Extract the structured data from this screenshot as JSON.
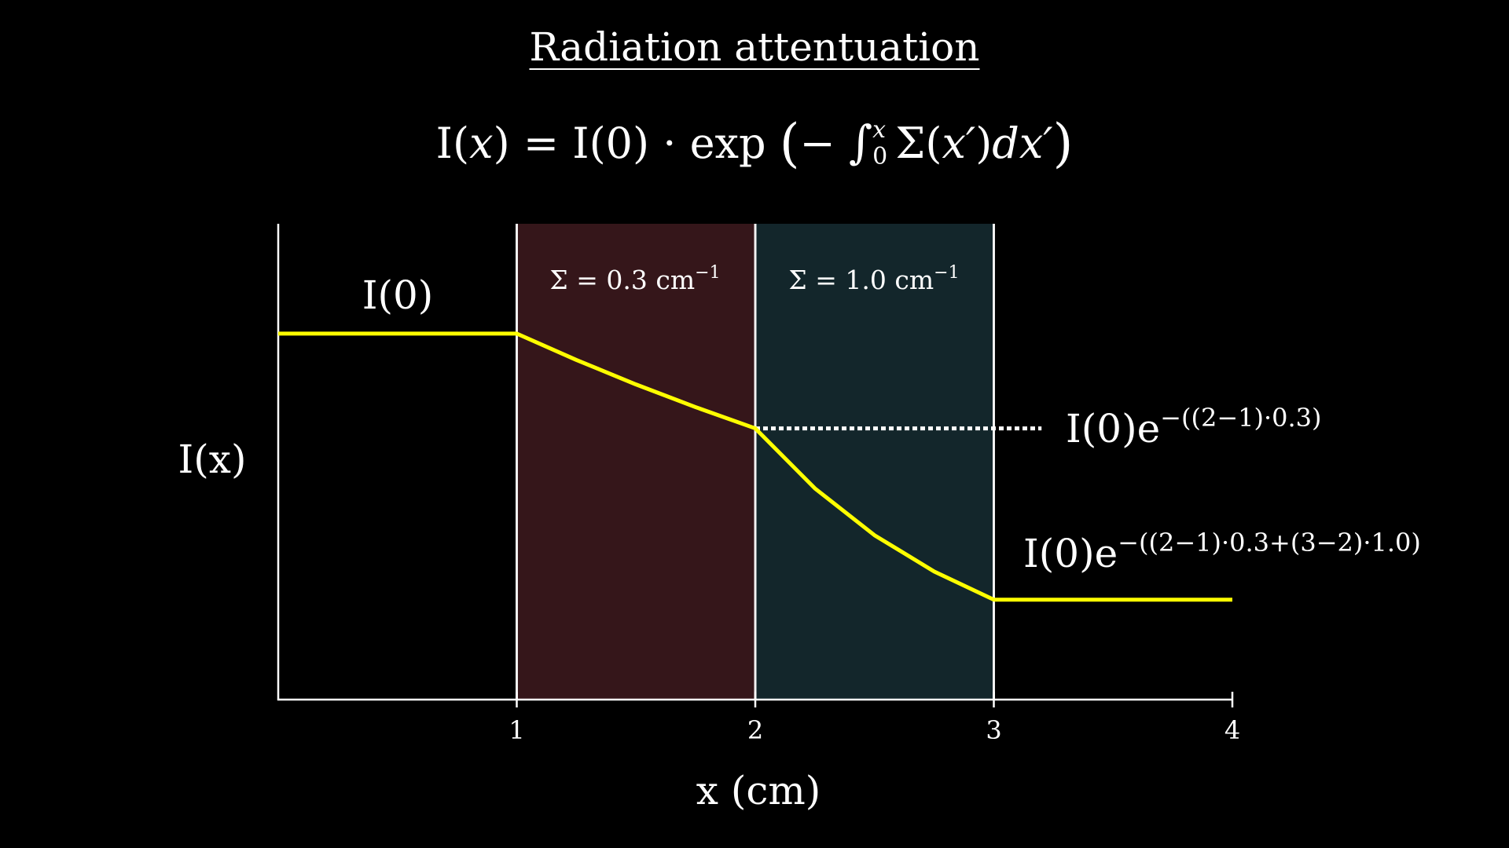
{
  "title": "Radiation attentuation",
  "formula": {
    "lhs_func": "I",
    "lhs_open": "(",
    "lhs_var": "x",
    "lhs_close": ")",
    "equals": "=",
    "i0": "I(0)",
    "dot": "·",
    "exp": "exp",
    "open_paren": "(",
    "minus": "−",
    "integral": "∫",
    "upper_limit": "x",
    "lower_limit": "0",
    "sigma": "Σ(",
    "sigma_arg": "x′",
    "sigma_close": ")",
    "d": "d",
    "d_var": "x′",
    "close_paren": ")"
  },
  "colors": {
    "background": "#000000",
    "curve": "#ffff00",
    "region1": "#35161a",
    "region2": "#13262b",
    "axis": "#ffffff",
    "text": "#ffffff"
  },
  "chart_data": {
    "type": "line",
    "title": "Radiation attentuation",
    "xlabel": "x (cm)",
    "ylabel": "I(x)",
    "xlim": [
      0,
      4
    ],
    "ylim": [
      0,
      1.3
    ],
    "x_ticks": [
      "1",
      "2",
      "3",
      "4"
    ],
    "grid": false,
    "series": [
      {
        "name": "I(x)",
        "x": [
          0,
          0.25,
          0.5,
          0.75,
          1.0,
          1.25,
          1.5,
          1.75,
          2.0,
          2.25,
          2.5,
          2.75,
          3.0,
          3.25,
          3.5,
          3.75,
          4.0
        ],
        "values": [
          1.0,
          1.0,
          1.0,
          1.0,
          1.0,
          0.928,
          0.861,
          0.799,
          0.741,
          0.577,
          0.449,
          0.35,
          0.273,
          0.273,
          0.273,
          0.273,
          0.273
        ]
      }
    ],
    "regions": [
      {
        "x_start": 1,
        "x_end": 2,
        "sigma": 0.3,
        "label": "Σ = 0.3 cm",
        "superscript": "−1"
      },
      {
        "x_start": 2,
        "x_end": 3,
        "sigma": 1.0,
        "label": "Σ = 1.0 cm",
        "superscript": "−1"
      }
    ],
    "annotations": {
      "i0_label": "I(0)",
      "reference_line_y": 0.741,
      "reference_line_x_range": [
        2,
        3.2
      ],
      "mid_label": {
        "base": "I(0)e",
        "exponent": "−((2−1)·0.3)"
      },
      "end_label": {
        "base": "I(0)e",
        "exponent": "−((2−1)·0.3+(3−2)·1.0)"
      }
    }
  }
}
